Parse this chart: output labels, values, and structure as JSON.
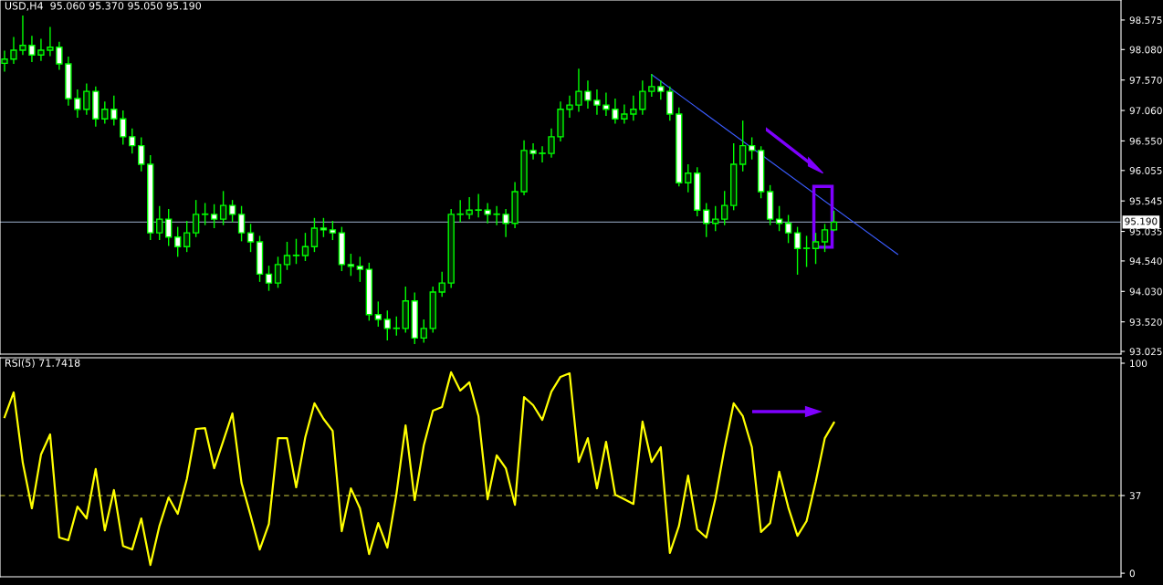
{
  "chart_data": [
    {
      "type": "candlestick",
      "title": "USD,H4  95.060 95.370 95.050 95.190",
      "color": "#00ff00",
      "categories": [
        null,
        null,
        null,
        null,
        null,
        null,
        null,
        null,
        null,
        null,
        null,
        null,
        null,
        null,
        null,
        null,
        null,
        null,
        null,
        null,
        null,
        null,
        null,
        null,
        null,
        null,
        null,
        null,
        null,
        null,
        null,
        null,
        null,
        null,
        null,
        null,
        null,
        null,
        null,
        null,
        null,
        null,
        null,
        null,
        null,
        null,
        null,
        null,
        null,
        null,
        null,
        null,
        null,
        null,
        null,
        null,
        null,
        null,
        null,
        null,
        null,
        null,
        null,
        null,
        null,
        null,
        null,
        null,
        null,
        null,
        null,
        null,
        null,
        null,
        null,
        null,
        null,
        null,
        null,
        null,
        null,
        null,
        null,
        null,
        null,
        null,
        null,
        null,
        null,
        null,
        null,
        null,
        null,
        null,
        null,
        null,
        null,
        null,
        null,
        null,
        null,
        null,
        null,
        null,
        null,
        null,
        null,
        null,
        null,
        null,
        null,
        null,
        null,
        null,
        null,
        null,
        null,
        null,
        null,
        null,
        null,
        null,
        null
      ],
      "ohlc": [
        [
          97.85,
          98.05,
          97.72,
          97.92
        ],
        [
          97.92,
          98.28,
          97.85,
          98.07
        ],
        [
          98.07,
          98.64,
          98.0,
          98.15
        ],
        [
          98.15,
          98.3,
          97.88,
          97.99
        ],
        [
          97.99,
          98.25,
          97.9,
          98.07
        ],
        [
          98.07,
          98.45,
          97.98,
          98.12
        ],
        [
          98.12,
          98.2,
          97.75,
          97.84
        ],
        [
          97.84,
          97.95,
          97.15,
          97.26
        ],
        [
          97.26,
          97.4,
          96.95,
          97.08
        ],
        [
          97.08,
          97.5,
          97.0,
          97.38
        ],
        [
          97.38,
          97.45,
          96.8,
          96.92
        ],
        [
          96.92,
          97.2,
          96.85,
          97.08
        ],
        [
          97.08,
          97.3,
          96.82,
          96.92
        ],
        [
          96.92,
          97.05,
          96.5,
          96.62
        ],
        [
          96.62,
          96.75,
          96.35,
          96.47
        ],
        [
          96.47,
          96.6,
          96.05,
          96.16
        ],
        [
          96.16,
          96.3,
          94.9,
          95.01
        ],
        [
          95.01,
          95.45,
          94.9,
          95.24
        ],
        [
          95.24,
          95.4,
          94.8,
          94.94
        ],
        [
          94.94,
          95.1,
          94.62,
          94.78
        ],
        [
          94.78,
          95.2,
          94.7,
          95.01
        ],
        [
          95.01,
          95.55,
          94.95,
          95.32
        ],
        [
          95.32,
          95.5,
          95.15,
          95.32
        ],
        [
          95.32,
          95.48,
          95.1,
          95.24
        ],
        [
          95.24,
          95.7,
          95.15,
          95.47
        ],
        [
          95.47,
          95.55,
          95.2,
          95.32
        ],
        [
          95.32,
          95.45,
          94.88,
          95.01
        ],
        [
          95.01,
          95.15,
          94.7,
          94.86
        ],
        [
          94.86,
          94.95,
          94.2,
          94.32
        ],
        [
          94.32,
          94.45,
          94.05,
          94.17
        ],
        [
          94.17,
          94.6,
          94.1,
          94.48
        ],
        [
          94.48,
          94.85,
          94.4,
          94.63
        ],
        [
          94.63,
          94.9,
          94.5,
          94.63
        ],
        [
          94.63,
          95.0,
          94.55,
          94.78
        ],
        [
          94.78,
          95.25,
          94.7,
          95.09
        ],
        [
          95.09,
          95.25,
          94.95,
          95.06
        ],
        [
          95.06,
          95.2,
          94.9,
          95.01
        ],
        [
          95.01,
          95.1,
          94.38,
          94.48
        ],
        [
          94.48,
          94.65,
          94.3,
          94.45
        ],
        [
          94.45,
          94.6,
          94.2,
          94.4
        ],
        [
          94.4,
          94.5,
          93.55,
          93.64
        ],
        [
          93.64,
          93.85,
          93.45,
          93.56
        ],
        [
          93.56,
          93.7,
          93.22,
          93.41
        ],
        [
          93.41,
          93.6,
          93.3,
          93.41
        ],
        [
          93.41,
          94.1,
          93.35,
          93.87
        ],
        [
          93.87,
          94.0,
          93.16,
          93.25
        ],
        [
          93.25,
          93.55,
          93.18,
          93.41
        ],
        [
          93.41,
          94.1,
          93.35,
          94.02
        ],
        [
          94.02,
          94.35,
          93.95,
          94.17
        ],
        [
          94.17,
          95.4,
          94.1,
          95.32
        ],
        [
          95.32,
          95.55,
          95.2,
          95.32
        ],
        [
          95.32,
          95.6,
          95.25,
          95.39
        ],
        [
          95.39,
          95.65,
          95.28,
          95.39
        ],
        [
          95.39,
          95.5,
          95.18,
          95.32
        ],
        [
          95.32,
          95.45,
          95.15,
          95.32
        ],
        [
          95.32,
          95.4,
          94.95,
          95.17
        ],
        [
          95.17,
          95.85,
          95.1,
          95.7
        ],
        [
          95.7,
          96.55,
          95.65,
          96.39
        ],
        [
          96.39,
          96.5,
          96.25,
          96.34
        ],
        [
          96.34,
          96.45,
          96.2,
          96.34
        ],
        [
          96.34,
          96.75,
          96.28,
          96.62
        ],
        [
          96.62,
          97.2,
          96.55,
          97.08
        ],
        [
          97.08,
          97.3,
          96.95,
          97.15
        ],
        [
          97.15,
          97.75,
          97.05,
          97.38
        ],
        [
          97.38,
          97.55,
          97.1,
          97.23
        ],
        [
          97.23,
          97.4,
          97.0,
          97.15
        ],
        [
          97.15,
          97.35,
          96.98,
          97.08
        ],
        [
          97.08,
          97.25,
          96.85,
          96.92
        ],
        [
          96.92,
          97.15,
          96.85,
          97.0
        ],
        [
          97.0,
          97.3,
          96.9,
          97.08
        ],
        [
          97.08,
          97.55,
          97.0,
          97.38
        ],
        [
          97.38,
          97.66,
          97.3,
          97.46
        ],
        [
          97.46,
          97.55,
          97.25,
          97.38
        ],
        [
          97.38,
          97.45,
          96.9,
          97.0
        ],
        [
          97.0,
          97.1,
          95.8,
          95.85
        ],
        [
          95.85,
          96.15,
          95.7,
          96.01
        ],
        [
          96.01,
          96.1,
          95.3,
          95.39
        ],
        [
          95.39,
          95.5,
          94.95,
          95.17
        ],
        [
          95.17,
          95.45,
          95.05,
          95.24
        ],
        [
          95.24,
          95.7,
          95.15,
          95.47
        ],
        [
          95.47,
          96.5,
          95.4,
          96.16
        ],
        [
          96.16,
          96.88,
          96.05,
          96.47
        ],
        [
          96.47,
          96.6,
          96.25,
          96.39
        ],
        [
          96.39,
          96.45,
          95.6,
          95.7
        ],
        [
          95.7,
          95.8,
          95.15,
          95.24
        ],
        [
          95.24,
          95.45,
          95.05,
          95.17
        ],
        [
          95.17,
          95.3,
          94.85,
          95.01
        ],
        [
          95.01,
          95.1,
          94.32,
          94.75
        ],
        [
          94.75,
          94.95,
          94.45,
          94.75
        ],
        [
          94.75,
          95.0,
          94.5,
          94.86
        ],
        [
          94.86,
          95.15,
          94.7,
          95.06
        ],
        [
          95.06,
          95.37,
          95.05,
          95.19
        ],
        null,
        null,
        null,
        null,
        null,
        null,
        null,
        null,
        null,
        null,
        null,
        null,
        null,
        null,
        null,
        null,
        null,
        null,
        null,
        null,
        null,
        null,
        null,
        null,
        null,
        null,
        null,
        null,
        null,
        null,
        null
      ],
      "series": [
        {
          "type": "line",
          "color": "#3a5cff",
          "values": [
            null,
            null,
            null,
            null,
            null,
            null,
            null,
            null,
            null,
            null,
            null,
            null,
            null,
            null,
            null,
            null,
            null,
            null,
            null,
            null,
            null,
            null,
            null,
            null,
            null,
            null,
            null,
            null,
            null,
            null,
            null,
            null,
            null,
            null,
            null,
            null,
            null,
            null,
            null,
            null,
            null,
            null,
            null,
            null,
            null,
            null,
            null,
            null,
            null,
            null,
            null,
            null,
            null,
            null,
            null,
            null,
            null,
            null,
            null,
            null,
            null,
            null,
            null,
            null,
            null,
            null,
            null,
            null,
            null,
            null,
            null,
            97.66,
            null,
            null,
            null,
            null,
            null,
            null,
            null,
            null,
            null,
            null,
            null,
            null,
            null,
            null,
            null,
            null,
            null,
            null,
            null,
            null,
            null,
            null,
            null,
            null,
            null,
            null,
            94.65,
            null,
            null,
            null,
            null,
            null,
            null,
            null,
            null,
            null,
            null,
            null,
            null,
            null,
            null,
            null,
            null,
            null,
            null,
            null,
            null,
            null,
            null,
            null,
            null
          ]
        }
      ],
      "ylim": [
        92.98,
        98.91
      ],
      "yticks": [
        {
          "value": 93.025,
          "label": "93.025"
        },
        {
          "value": 93.52,
          "label": "93.520"
        },
        {
          "value": 94.03,
          "label": "94.030"
        },
        {
          "value": 94.54,
          "label": "94.540"
        },
        {
          "value": 95.035,
          "label": "95.035"
        },
        {
          "value": 95.545,
          "label": "95.545"
        },
        {
          "value": 96.055,
          "label": "96.055"
        },
        {
          "value": 96.55,
          "label": "96.550"
        },
        {
          "value": 97.06,
          "label": "97.060"
        },
        {
          "value": 97.57,
          "label": "97.570"
        },
        {
          "value": 98.08,
          "label": "98.080"
        },
        {
          "value": 98.575,
          "label": "98.575"
        }
      ],
      "ref_lines": [
        {
          "axis": "y",
          "value": 95.19,
          "label": "95.190",
          "color": "#7f8fa6",
          "line_style": "solid"
        }
      ],
      "tick_labels": "y",
      "grid": false,
      "legend": false
    },
    {
      "type": "line",
      "title": "RSI(5) 71.7418",
      "categories": [
        null,
        null,
        null,
        null,
        null,
        null,
        null,
        null,
        null,
        null,
        null,
        null,
        null,
        null,
        null,
        null,
        null,
        null,
        null,
        null,
        null,
        null,
        null,
        null,
        null,
        null,
        null,
        null,
        null,
        null,
        null,
        null,
        null,
        null,
        null,
        null,
        null,
        null,
        null,
        null,
        null,
        null,
        null,
        null,
        null,
        null,
        null,
        null,
        null,
        null,
        null,
        null,
        null,
        null,
        null,
        null,
        null,
        null,
        null,
        null,
        null,
        null,
        null,
        null,
        null,
        null,
        null,
        null,
        null,
        null,
        null,
        null,
        null,
        null,
        null,
        null,
        null,
        null,
        null,
        null,
        null,
        null,
        null,
        null,
        null,
        null,
        null,
        null,
        null,
        null,
        null,
        null,
        null,
        null,
        null,
        null,
        null,
        null,
        null,
        null,
        null,
        null,
        null,
        null,
        null,
        null,
        null,
        null,
        null,
        null,
        null,
        null,
        null,
        null,
        null,
        null,
        null,
        null,
        null,
        null,
        null,
        null,
        null
      ],
      "series": [
        {
          "color": "#ffff00",
          "values": [
            74.3,
            86.1,
            52.6,
            30.9,
            56.5,
            66.1,
            17.0,
            15.7,
            31.7,
            26.1,
            49.6,
            20.4,
            39.6,
            13.0,
            11.3,
            26.1,
            3.9,
            22.6,
            36.1,
            28.3,
            44.8,
            68.7,
            69.1,
            50.0,
            63.0,
            76.1,
            43.0,
            27.4,
            11.3,
            23.5,
            64.3,
            64.3,
            40.9,
            64.8,
            80.9,
            73.5,
            67.8,
            20.0,
            40.4,
            30.9,
            9.1,
            23.9,
            12.2,
            37.8,
            70.4,
            34.8,
            60.9,
            77.4,
            79.1,
            95.7,
            87.0,
            90.9,
            74.8,
            35.2,
            56.1,
            50.0,
            32.6,
            83.9,
            80.0,
            73.0,
            86.5,
            93.5,
            95.2,
            53.0,
            64.3,
            40.4,
            62.6,
            37.4,
            35.2,
            33.0,
            72.2,
            53.0,
            60.0,
            9.6,
            22.6,
            46.5,
            20.9,
            17.0,
            35.7,
            59.6,
            80.9,
            74.8,
            60.0,
            19.6,
            23.9,
            48.3,
            31.3,
            17.8,
            24.8,
            43.5,
            64.3,
            71.7,
            null,
            null,
            null,
            null,
            null,
            null,
            null,
            null,
            null,
            null,
            null,
            null,
            null,
            null,
            null,
            null,
            null,
            null,
            null,
            null,
            null,
            null,
            null,
            null,
            null,
            null,
            null,
            null,
            null,
            null,
            null
          ]
        }
      ],
      "ylim": [
        -1.7,
        102.6
      ],
      "yticks": [
        0,
        37,
        100
      ],
      "ref_lines": [
        {
          "axis": "y",
          "value": 37,
          "color": "#8b8b2a",
          "line_style": "dashed"
        }
      ],
      "tick_labels": "y",
      "grid": false,
      "legend": false,
      "marker": "none"
    }
  ]
}
